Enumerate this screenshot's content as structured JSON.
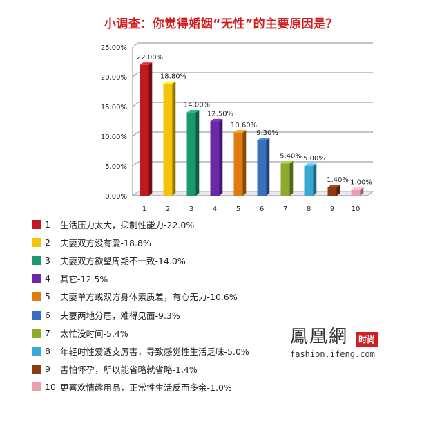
{
  "title": "小调查：你觉得婚姻“无性”的主要原因是？",
  "chart_data": {
    "type": "bar",
    "categories": [
      "1",
      "2",
      "3",
      "4",
      "5",
      "6",
      "7",
      "8",
      "9",
      "10"
    ],
    "values": [
      22.0,
      18.8,
      14.0,
      12.5,
      10.6,
      9.3,
      5.4,
      5.0,
      1.4,
      1.0
    ],
    "data_labels": [
      "22.00%",
      "18.80%",
      "14.00%",
      "12.50%",
      "10.60%",
      "9.30%",
      "5.40%",
      "5.00%",
      "1.40%",
      "1.00%"
    ],
    "ylim": [
      0,
      25
    ],
    "yticks": [
      "0.00%",
      "5.00%",
      "10.00%",
      "15.00%",
      "20.00%",
      "25.00%"
    ],
    "grid": true,
    "colors": [
      "#c0191f",
      "#f2c40a",
      "#1a9a6c",
      "#6a2aa8",
      "#e07b12",
      "#3a6fbf",
      "#8caa2c",
      "#3aa8d0",
      "#8b3a14",
      "#e8a0ac"
    ]
  },
  "legend": [
    {
      "num": "1",
      "text": "生活压力太大，抑制性能力-22.0%"
    },
    {
      "num": "2",
      "text": "夫妻双方没有爱-18.8%"
    },
    {
      "num": "3",
      "text": "夫妻双方欲望周期不一致-14.0%"
    },
    {
      "num": "4",
      "text": "其它-12.5%"
    },
    {
      "num": "5",
      "text": "夫妻单方或双方身体素质差，有心无力-10.6%"
    },
    {
      "num": "6",
      "text": "夫妻两地分居，难得见面-9.3%"
    },
    {
      "num": "7",
      "text": "太忙没时间-5.4%"
    },
    {
      "num": "8",
      "text": "年轻时性爱透支厉害，导致感觉性生活乏味-5.0%"
    },
    {
      "num": "9",
      "text": "害怕怀孕，所以能省略就省略-1.4%"
    },
    {
      "num": "10",
      "text": "更喜欢情趣用品，正常性生活反而多余-1.0%"
    }
  ],
  "logo": {
    "name": "鳳凰網",
    "badge": "时尚",
    "url": "fashion.ifeng.com"
  }
}
